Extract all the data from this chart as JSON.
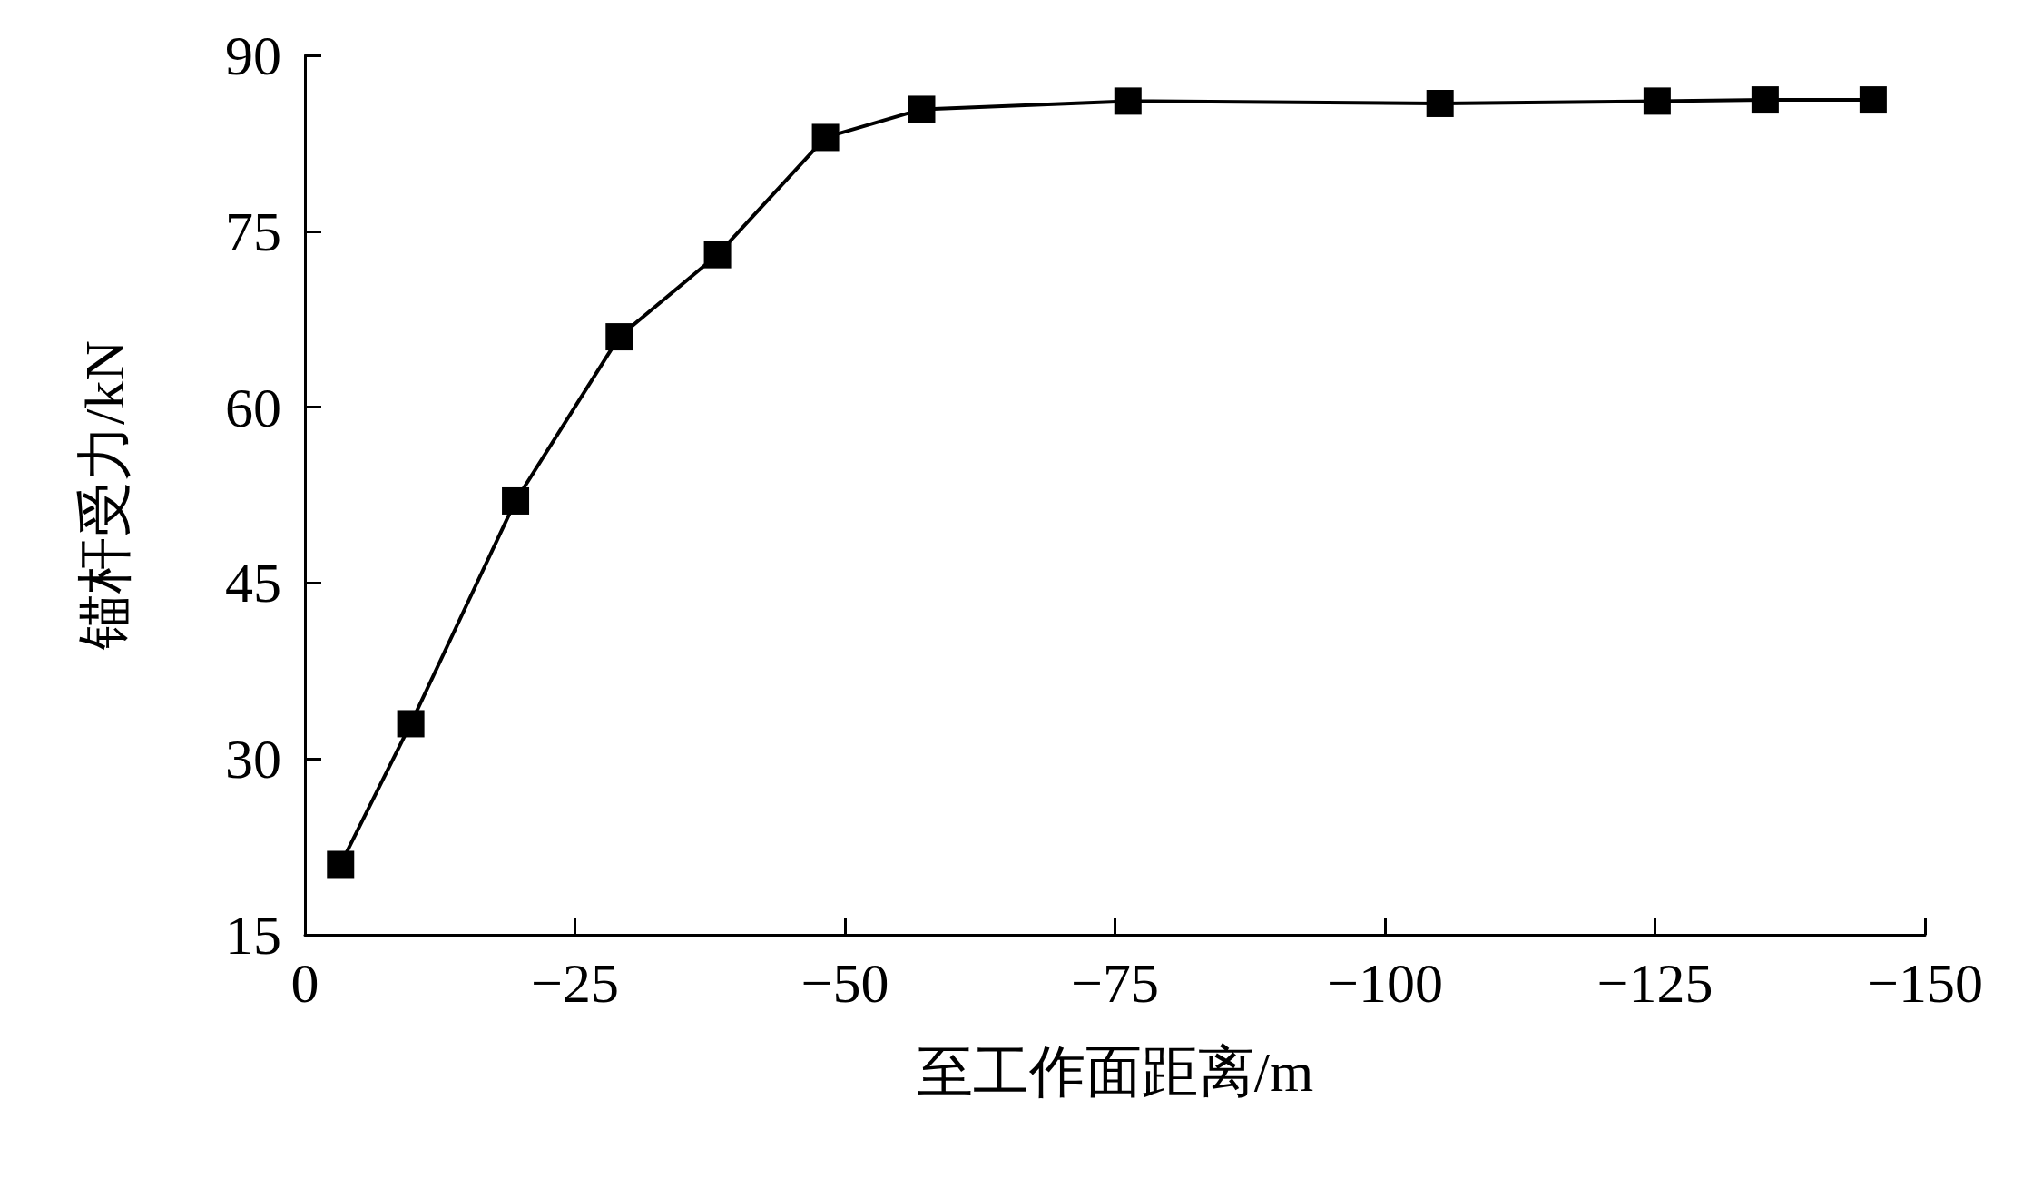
{
  "chart_data": {
    "type": "line",
    "xlabel": "至工作面距离/m",
    "ylabel": "锚杆受力/kN",
    "x": [
      -3.3,
      -9.8,
      -19.5,
      -29.1,
      -38.2,
      -48.2,
      -57.1,
      -76.2,
      -105.1,
      -125.2,
      -135.2,
      -145.2
    ],
    "series": [
      {
        "color": "#000000",
        "values": [
          21,
          33,
          52,
          66,
          73,
          83,
          85.4,
          86.1,
          85.9,
          86.1,
          86.2,
          86.2
        ]
      }
    ],
    "xlim": [
      0,
      -150
    ],
    "xticks": [
      0,
      {
        "value": -25,
        "label": "−25"
      },
      {
        "value": -50,
        "label": "−50"
      },
      {
        "value": -75,
        "label": "−75"
      },
      {
        "value": -100,
        "label": "−100"
      },
      {
        "value": -125,
        "label": "−125"
      },
      {
        "value": -150,
        "label": "−150"
      }
    ],
    "ylim": [
      15,
      90
    ],
    "yticks": [
      15,
      30,
      45,
      60,
      75,
      90
    ],
    "grid": false,
    "marker": "square",
    "line_style": "solid"
  }
}
